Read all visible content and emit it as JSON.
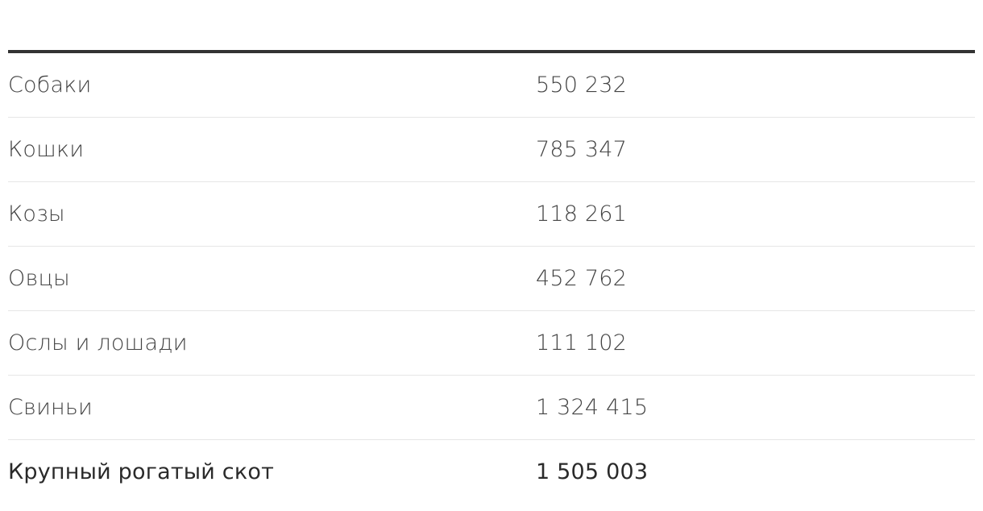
{
  "table": {
    "rows": [
      {
        "label": "Собаки",
        "value": "550 232"
      },
      {
        "label": "Кошки",
        "value": "785 347"
      },
      {
        "label": "Козы",
        "value": "118 261"
      },
      {
        "label": "Овцы",
        "value": "452 762"
      },
      {
        "label": "Ослы и лошади",
        "value": "111 102"
      },
      {
        "label": "Свиньи",
        "value": "1 324 415"
      },
      {
        "label": "Крупный рогатый скот",
        "value": "1 505 003"
      }
    ]
  }
}
